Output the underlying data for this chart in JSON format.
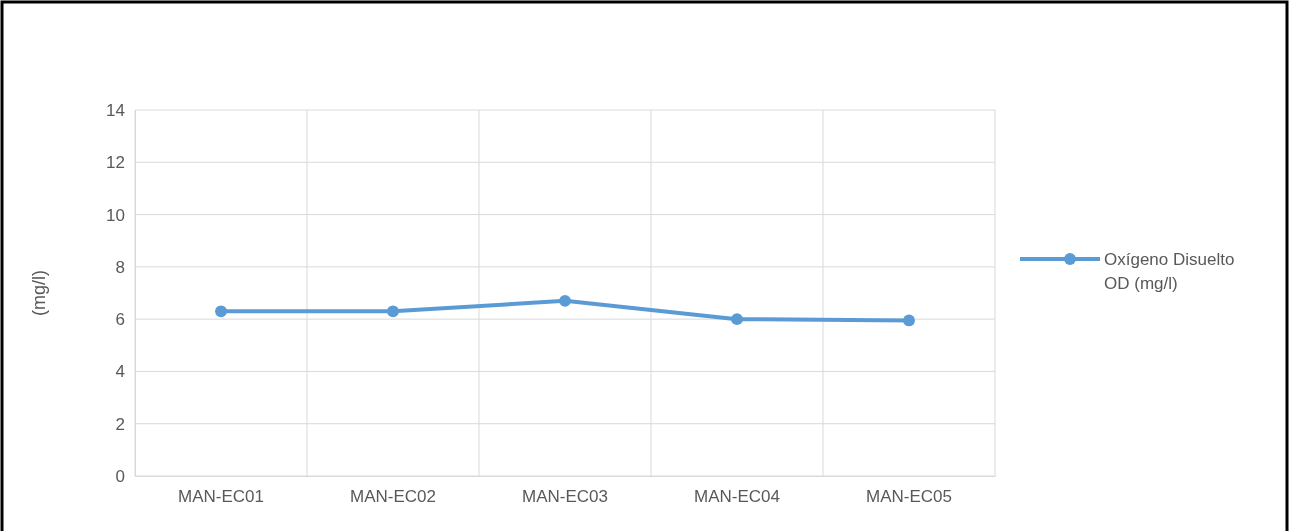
{
  "chart_data": {
    "type": "line",
    "ylabel": "(mg/l)",
    "categories": [
      "MAN-EC01",
      "MAN-EC02",
      "MAN-EC03",
      "MAN-EC04",
      "MAN-EC05"
    ],
    "series": [
      {
        "name": "Oxígeno Disuelto OD (mg/l)",
        "color": "#5b9bd5",
        "values": [
          6.3,
          6.3,
          6.7,
          6.0,
          5.95
        ]
      }
    ],
    "ylim": [
      0,
      14
    ],
    "yticks": [
      0,
      2,
      4,
      6,
      8,
      10,
      12,
      14
    ],
    "grid": true,
    "legend": "right",
    "marker": "circle",
    "line_style": "solid"
  }
}
